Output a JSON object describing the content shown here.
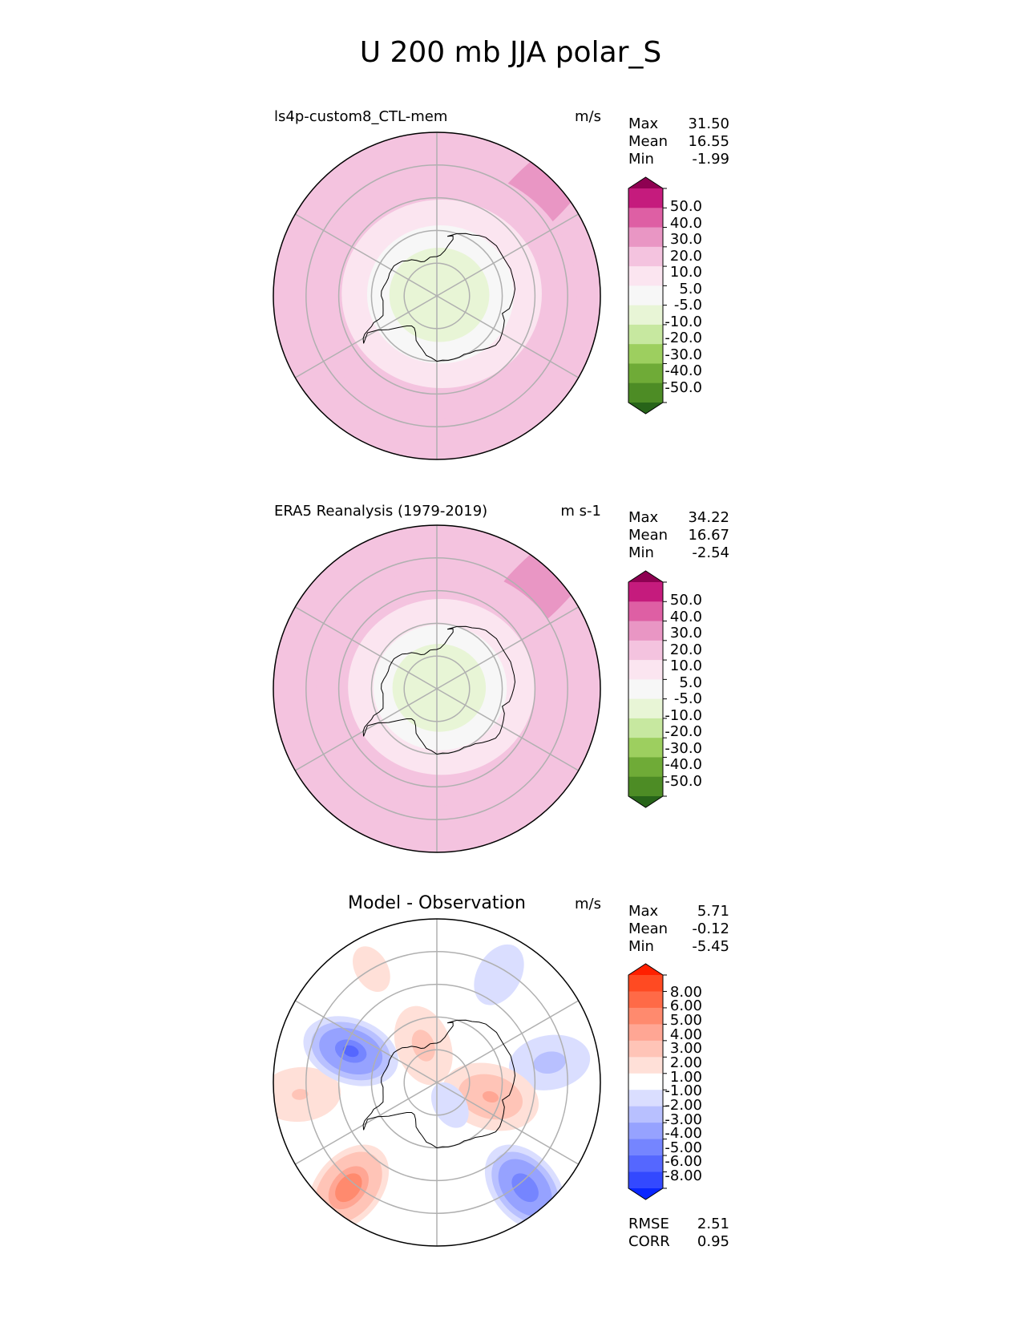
{
  "title": "U 200 mb JJA polar_S",
  "colors": {
    "land_outline": "#000000",
    "gridline": "#b0b0b0",
    "background": "#ffffff"
  },
  "chart_data": [
    {
      "type": "heatmap",
      "projection": "south-polar-stereographic",
      "title": "ls4p-custom8_CTL-mem",
      "units": "m/s",
      "stats": [
        {
          "label": "Max",
          "value": "31.50"
        },
        {
          "label": "Mean",
          "value": "16.55"
        },
        {
          "label": "Min",
          "value": "-1.99"
        }
      ],
      "colorbar": {
        "tick_labels": [
          "50.0",
          "40.0",
          "30.0",
          "20.0",
          "10.0",
          "5.0",
          "-5.0",
          "-10.0",
          "-20.0",
          "-30.0",
          "-40.0",
          "-50.0"
        ],
        "colors": [
          "#8e0152",
          "#c51b7d",
          "#de5fa4",
          "#e996c4",
          "#f4c3df",
          "#fbe5f0",
          "#f7f7f7",
          "#e8f5d6",
          "#c7e8a0",
          "#9dcf5f",
          "#6fab37",
          "#4d8c25",
          "#276419"
        ],
        "extend": "both"
      },
      "rings": [
        {
          "lat": -50,
          "level": 20
        },
        {
          "lat": -60,
          "level": 10
        },
        {
          "lat": -68,
          "level": 5
        },
        {
          "lat": -75,
          "level": -5
        }
      ],
      "base_level": 20,
      "patches": [
        {
          "lon": 135,
          "lat": -47,
          "level": 30
        }
      ]
    },
    {
      "type": "heatmap",
      "projection": "south-polar-stereographic",
      "title": "ERA5 Reanalysis (1979-2019)",
      "units": "m s-1",
      "stats": [
        {
          "label": "Max",
          "value": "34.22"
        },
        {
          "label": "Mean",
          "value": "16.67"
        },
        {
          "label": "Min",
          "value": "-2.54"
        }
      ],
      "colorbar": {
        "tick_labels": [
          "50.0",
          "40.0",
          "30.0",
          "20.0",
          "10.0",
          "5.0",
          "-5.0",
          "-10.0",
          "-20.0",
          "-30.0",
          "-40.0",
          "-50.0"
        ],
        "colors": [
          "#8e0152",
          "#c51b7d",
          "#de5fa4",
          "#e996c4",
          "#f4c3df",
          "#fbe5f0",
          "#f7f7f7",
          "#e8f5d6",
          "#c7e8a0",
          "#9dcf5f",
          "#6fab37",
          "#4d8c25",
          "#276419"
        ],
        "extend": "both"
      },
      "rings": [
        {
          "lat": -52,
          "level": 20
        },
        {
          "lat": -62,
          "level": 10
        },
        {
          "lat": -70,
          "level": 5
        },
        {
          "lat": -76,
          "level": -5
        }
      ],
      "base_level": 20,
      "patches": [
        {
          "lon": 135,
          "lat": -46,
          "level": 30
        }
      ]
    },
    {
      "type": "heatmap",
      "projection": "south-polar-stereographic",
      "title": "Model - Observation",
      "units": "m/s",
      "stats": [
        {
          "label": "Max",
          "value": "5.71"
        },
        {
          "label": "Mean",
          "value": "-0.12"
        },
        {
          "label": "Min",
          "value": "-5.45"
        }
      ],
      "colorbar": {
        "tick_labels": [
          "8.00",
          "6.00",
          "5.00",
          "4.00",
          "3.00",
          "2.00",
          "1.00",
          "-1.00",
          "-2.00",
          "-3.00",
          "-4.00",
          "-5.00",
          "-6.00",
          "-8.00"
        ],
        "colors": [
          "#ff2000",
          "#ff4a22",
          "#ff6a47",
          "#ff8a6e",
          "#ffa694",
          "#ffc4b7",
          "#ffe0d8",
          "#ffffff",
          "#dadeff",
          "#b8c0ff",
          "#96a2ff",
          "#7585ff",
          "#5567ff",
          "#3349ff",
          "#0a26ff"
        ],
        "extend": "both"
      },
      "base_level": 0,
      "blobs": [
        {
          "lon": -40,
          "lat": -48,
          "value": 4.8
        },
        {
          "lon": -85,
          "lat": -48,
          "value": 2.2
        },
        {
          "lon": 40,
          "lat": -48,
          "value": -4.8
        },
        {
          "lon": 100,
          "lat": -55,
          "value": -2.6
        },
        {
          "lon": 150,
          "lat": -52,
          "value": -1.8
        },
        {
          "lon": -110,
          "lat": -62,
          "value": -5.0
        },
        {
          "lon": -150,
          "lat": -50,
          "value": 1.6
        },
        {
          "lon": 75,
          "lat": -73,
          "value": 3.4
        },
        {
          "lon": -160,
          "lat": -78,
          "value": 2.6
        },
        {
          "lon": 30,
          "lat": -82,
          "value": -1.5
        }
      ],
      "extra_stats": [
        {
          "label": "RMSE",
          "value": "2.51"
        },
        {
          "label": "CORR",
          "value": "0.95"
        }
      ]
    }
  ]
}
